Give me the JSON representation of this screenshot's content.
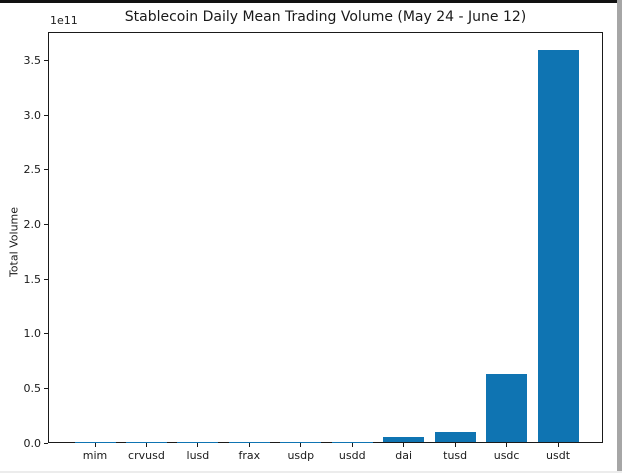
{
  "window": {
    "frame_top_color": "#111111",
    "right_edge_color": "#a6a6a6",
    "background_color": "#ffffff"
  },
  "chart_data": {
    "type": "bar",
    "title": "Stablecoin Daily Mean Trading Volume (May 24 - June 12)",
    "xlabel": "",
    "ylabel": "Total Volume",
    "offset_label": "1e11",
    "categories": [
      "mim",
      "crvusd",
      "lusd",
      "frax",
      "usdp",
      "usdd",
      "dai",
      "tusd",
      "usdc",
      "usdt"
    ],
    "values": [
      100000000.0,
      100000000.0,
      100000000.0,
      100000000.0,
      100000000.0,
      100000000.0,
      4500000000.0,
      9000000000.0,
      62000000000.0,
      359000000000.0
    ],
    "ytick_labels": [
      "0.0",
      "0.5",
      "1.0",
      "1.5",
      "2.0",
      "2.5",
      "3.0",
      "3.5"
    ],
    "ytick_values": [
      0,
      50000000000.0,
      100000000000.0,
      150000000000.0,
      200000000000.0,
      250000000000.0,
      300000000000.0,
      350000000000.0
    ],
    "ylim": [
      0,
      376000000000.0
    ],
    "bar_color": "#0f74b2",
    "axis_color": "#1a1a1a",
    "grid": false,
    "legend": null
  }
}
